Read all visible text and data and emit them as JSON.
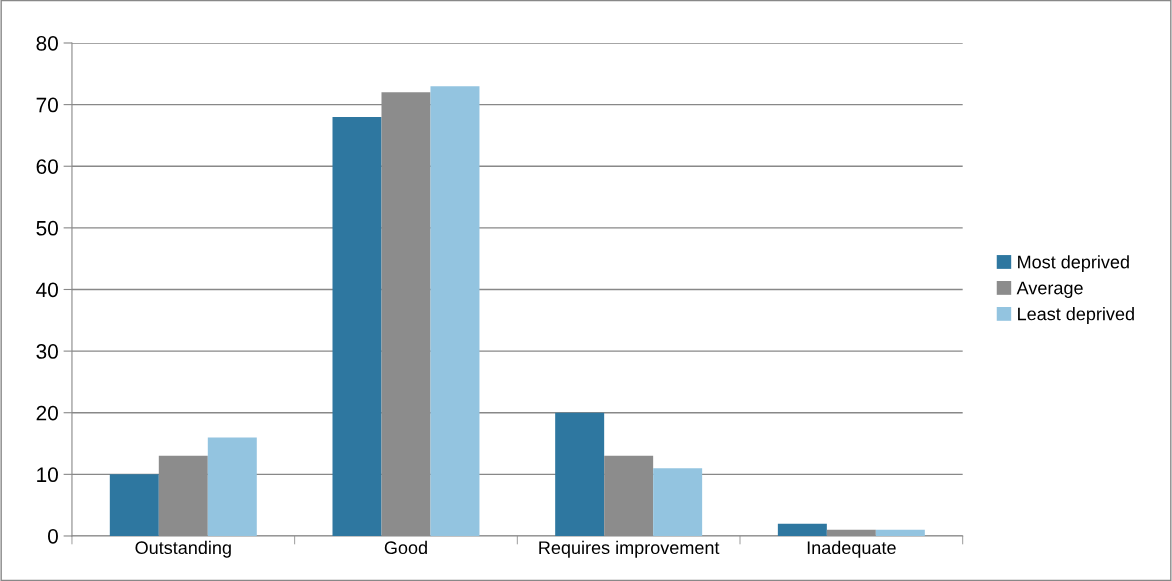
{
  "chart_data": {
    "type": "bar",
    "categories": [
      "Outstanding",
      "Good",
      "Requires improvement",
      "Inadequate"
    ],
    "series": [
      {
        "name": "Most deprived",
        "color": "#2e77a0",
        "values": [
          10,
          68,
          20,
          2
        ]
      },
      {
        "name": "Average",
        "color": "#8c8c8c",
        "values": [
          13,
          72,
          13,
          1
        ]
      },
      {
        "name": "Least deprived",
        "color": "#93c4e0",
        "values": [
          16,
          73,
          11,
          1
        ]
      }
    ],
    "ylim": [
      0,
      80
    ],
    "yticks": [
      0,
      10,
      20,
      30,
      40,
      50,
      60,
      70,
      80
    ],
    "grid": "y",
    "legend": "right"
  }
}
